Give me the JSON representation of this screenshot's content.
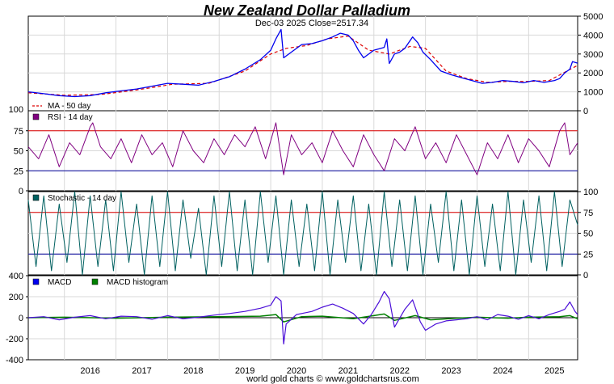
{
  "chart_data": {
    "type": "line",
    "title": "New Zealand Dollar Palladium",
    "subtitle": "Dec-03  2025   Close=2517.34",
    "footer": "world gold charts © www.goldchartsrus.com",
    "x_tick_labels": [
      "2016",
      "2017",
      "2018",
      "2019",
      "2020",
      "2021",
      "2022",
      "2023",
      "2024",
      "2025"
    ],
    "x_range": [
      2015.3,
      2025.95
    ],
    "colors": {
      "price": "#0000ee",
      "ma": "#dd0000",
      "rsi": "#800080",
      "stoch": "#006060",
      "macd": "#4b0fd8",
      "hist": "#008000",
      "level_hi": "#dd0000",
      "level_lo": "#000099",
      "title": "#1010dd",
      "axis_right_red": "#dd0000",
      "axis_right_blue": "#0000aa"
    },
    "panels": [
      {
        "id": "price",
        "legend": [
          "MA - 50 day"
        ],
        "y_range": [
          0,
          5000
        ],
        "y_ticks": [
          "0",
          "1000",
          "2000",
          "3000",
          "4000",
          "5000"
        ],
        "left_label": "100",
        "series": [
          {
            "name": "Price",
            "x": [
              2015.3,
              2015.6,
              2015.9,
              2016.2,
              2016.5,
              2016.8,
              2017.1,
              2017.4,
              2017.7,
              2018.0,
              2018.3,
              2018.6,
              2018.9,
              2019.2,
              2019.5,
              2019.8,
              2020.0,
              2020.1,
              2020.2,
              2020.25,
              2020.4,
              2020.6,
              2020.8,
              2021.0,
              2021.2,
              2021.35,
              2021.5,
              2021.6,
              2021.7,
              2021.8,
              2022.0,
              2022.2,
              2022.25,
              2022.3,
              2022.4,
              2022.5,
              2022.6,
              2022.75,
              2022.85,
              2022.95,
              2023.1,
              2023.3,
              2023.5,
              2023.7,
              2023.9,
              2024.1,
              2024.3,
              2024.5,
              2024.7,
              2024.9,
              2025.1,
              2025.3,
              2025.5,
              2025.6,
              2025.7,
              2025.8,
              2025.85,
              2025.95
            ],
            "values": [
              1000,
              900,
              800,
              750,
              800,
              950,
              1050,
              1150,
              1300,
              1450,
              1400,
              1350,
              1550,
              1800,
              2200,
              2700,
              3200,
              3800,
              4300,
              2800,
              3100,
              3500,
              3550,
              3700,
              3900,
              4100,
              4000,
              3700,
              3200,
              2800,
              3200,
              3350,
              3800,
              2500,
              3000,
              3100,
              3300,
              3900,
              3600,
              3100,
              2700,
              2100,
              1900,
              1750,
              1600,
              1450,
              1500,
              1600,
              1550,
              1480,
              1600,
              1500,
              1600,
              1700,
              2000,
              2200,
              2600,
              2517
            ]
          },
          {
            "name": "MA - 50 day",
            "x": [
              2015.3,
              2016.0,
              2016.7,
              2017.4,
              2018.1,
              2018.8,
              2019.5,
              2020.0,
              2020.3,
              2020.7,
              2021.1,
              2021.5,
              2021.9,
              2022.3,
              2022.7,
              2023.0,
              2023.4,
              2023.8,
              2024.2,
              2024.6,
              2025.0,
              2025.4,
              2025.95
            ],
            "values": [
              950,
              820,
              860,
              1100,
              1400,
              1450,
              2100,
              3000,
              3300,
              3450,
              3800,
              3950,
              3200,
              3000,
              3400,
              3300,
              2100,
              1700,
              1500,
              1550,
              1550,
              1600,
              2400
            ]
          }
        ]
      },
      {
        "id": "rsi",
        "legend": [
          "RSI - 14 day"
        ],
        "y_range": [
          0,
          100
        ],
        "levels": [
          75,
          25
        ],
        "y_ticks_left": [
          "100",
          "75",
          "50",
          "25",
          "0"
        ],
        "series": [
          {
            "name": "RSI - 14 day",
            "x": [
              2015.3,
              2015.5,
              2015.7,
              2015.9,
              2016.1,
              2016.3,
              2016.5,
              2016.55,
              2016.7,
              2016.9,
              2017.1,
              2017.3,
              2017.5,
              2017.7,
              2017.9,
              2018.1,
              2018.3,
              2018.5,
              2018.7,
              2018.9,
              2019.1,
              2019.3,
              2019.5,
              2019.7,
              2019.9,
              2020.1,
              2020.25,
              2020.4,
              2020.6,
              2020.8,
              2021.0,
              2021.2,
              2021.4,
              2021.6,
              2021.8,
              2022.0,
              2022.2,
              2022.4,
              2022.6,
              2022.8,
              2023.0,
              2023.2,
              2023.4,
              2023.6,
              2023.8,
              2024.0,
              2024.2,
              2024.4,
              2024.6,
              2024.8,
              2025.0,
              2025.2,
              2025.4,
              2025.6,
              2025.7,
              2025.8,
              2025.95
            ],
            "values": [
              55,
              40,
              70,
              30,
              60,
              45,
              80,
              85,
              55,
              40,
              65,
              35,
              70,
              45,
              60,
              30,
              75,
              50,
              35,
              65,
              45,
              70,
              55,
              80,
              40,
              85,
              20,
              70,
              45,
              60,
              35,
              75,
              50,
              30,
              70,
              45,
              25,
              65,
              50,
              80,
              40,
              60,
              35,
              70,
              45,
              20,
              60,
              40,
              70,
              35,
              65,
              50,
              30,
              75,
              85,
              45,
              60
            ]
          }
        ]
      },
      {
        "id": "stoch",
        "legend": [
          "Stochastic - 14 day"
        ],
        "y_range": [
          0,
          100
        ],
        "levels": [
          75,
          25
        ],
        "y_ticks": [
          "0",
          "25",
          "50",
          "75",
          "100"
        ],
        "series": [
          {
            "name": "Stochastic - 14 day",
            "x": [
              2015.3,
              2015.45,
              2015.6,
              2015.75,
              2015.9,
              2016.05,
              2016.2,
              2016.35,
              2016.5,
              2016.65,
              2016.8,
              2016.95,
              2017.1,
              2017.25,
              2017.4,
              2017.55,
              2017.7,
              2017.85,
              2018.0,
              2018.15,
              2018.3,
              2018.45,
              2018.6,
              2018.75,
              2018.9,
              2019.05,
              2019.2,
              2019.35,
              2019.5,
              2019.65,
              2019.8,
              2019.95,
              2020.1,
              2020.25,
              2020.4,
              2020.55,
              2020.7,
              2020.85,
              2021.0,
              2021.15,
              2021.3,
              2021.45,
              2021.6,
              2021.75,
              2021.9,
              2022.05,
              2022.2,
              2022.35,
              2022.5,
              2022.65,
              2022.8,
              2022.95,
              2023.1,
              2023.25,
              2023.4,
              2023.55,
              2023.7,
              2023.85,
              2024.0,
              2024.15,
              2024.3,
              2024.45,
              2024.6,
              2024.75,
              2024.9,
              2025.05,
              2025.2,
              2025.35,
              2025.5,
              2025.65,
              2025.8,
              2025.95
            ],
            "values": [
              90,
              10,
              95,
              5,
              85,
              15,
              100,
              0,
              95,
              10,
              90,
              5,
              100,
              15,
              85,
              0,
              95,
              10,
              100,
              5,
              90,
              20,
              80,
              0,
              95,
              10,
              100,
              5,
              90,
              0,
              100,
              15,
              95,
              0,
              90,
              10,
              85,
              5,
              100,
              0,
              90,
              15,
              95,
              5,
              85,
              0,
              100,
              10,
              90,
              5,
              95,
              0,
              85,
              15,
              100,
              5,
              90,
              0,
              95,
              10,
              85,
              5,
              100,
              0,
              90,
              15,
              95,
              5,
              100,
              10,
              90,
              60
            ]
          }
        ]
      },
      {
        "id": "macd",
        "legend": [
          "MACD",
          "MACD histogram"
        ],
        "y_range": [
          -400,
          400
        ],
        "y_ticks_left": [
          "400",
          "200",
          "0",
          "-200",
          "-400"
        ],
        "series": [
          {
            "name": "MACD",
            "x": [
              2015.3,
              2015.6,
              2015.9,
              2016.2,
              2016.5,
              2016.8,
              2017.1,
              2017.4,
              2017.7,
              2018.0,
              2018.3,
              2018.6,
              2018.9,
              2019.2,
              2019.5,
              2019.8,
              2020.0,
              2020.1,
              2020.2,
              2020.25,
              2020.3,
              2020.5,
              2020.8,
              2021.0,
              2021.2,
              2021.4,
              2021.6,
              2021.8,
              2021.95,
              2022.1,
              2022.2,
              2022.3,
              2022.4,
              2022.6,
              2022.75,
              2022.9,
              2023.0,
              2023.2,
              2023.4,
              2023.6,
              2023.8,
              2024.0,
              2024.2,
              2024.4,
              2024.6,
              2024.8,
              2025.0,
              2025.2,
              2025.4,
              2025.6,
              2025.7,
              2025.8,
              2025.9,
              2025.95
            ],
            "values": [
              0,
              10,
              -20,
              5,
              20,
              -10,
              15,
              10,
              -15,
              20,
              -10,
              5,
              25,
              40,
              60,
              90,
              120,
              200,
              160,
              -250,
              -60,
              30,
              60,
              100,
              130,
              90,
              40,
              -60,
              30,
              150,
              250,
              180,
              -90,
              80,
              170,
              -40,
              -120,
              -60,
              -30,
              -20,
              -10,
              10,
              -20,
              30,
              15,
              -15,
              20,
              -10,
              30,
              60,
              80,
              150,
              60,
              30
            ]
          },
          {
            "name": "MACD histogram",
            "x": [
              2015.3,
              2016.0,
              2017.0,
              2018.0,
              2019.0,
              2019.8,
              2020.1,
              2020.25,
              2020.6,
              2021.0,
              2021.6,
              2022.0,
              2022.2,
              2022.4,
              2022.8,
              2023.1,
              2023.6,
              2024.0,
              2024.6,
              2025.0,
              2025.6,
              2025.8,
              2025.95
            ],
            "values": [
              0,
              5,
              -5,
              5,
              10,
              15,
              30,
              -40,
              10,
              15,
              -10,
              20,
              35,
              -25,
              20,
              -20,
              -5,
              5,
              -5,
              5,
              10,
              20,
              -10
            ]
          }
        ]
      }
    ]
  }
}
